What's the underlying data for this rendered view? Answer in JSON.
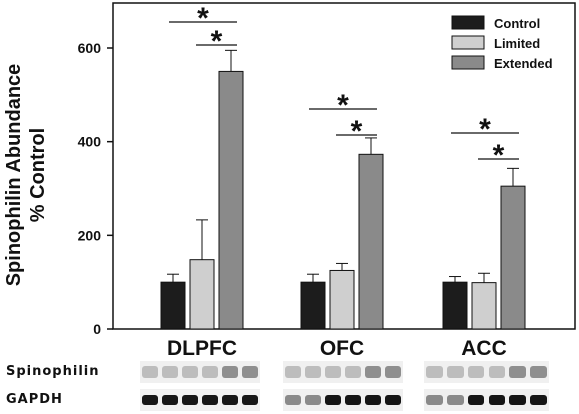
{
  "chart_data": {
    "type": "bar",
    "ylabel": [
      "Spinophilin Abundance",
      "% Control"
    ],
    "xlabel": "",
    "ylim": [
      0,
      700
    ],
    "yticks": [
      0,
      200,
      400,
      600
    ],
    "grid": false,
    "legend_placement": "top-right",
    "categories": [
      "DLPFC",
      "OFC",
      "ACC"
    ],
    "series": [
      {
        "name": "Control",
        "color": "#1c1c1c",
        "values": [
          100,
          100,
          100
        ],
        "errors": [
          17,
          17,
          12
        ]
      },
      {
        "name": "Limited",
        "color": "#cfcfcf",
        "values": [
          148,
          125,
          99
        ],
        "errors": [
          85,
          15,
          20
        ]
      },
      {
        "name": "Extended",
        "color": "#8a8a8a",
        "values": [
          550,
          373,
          305
        ],
        "errors": [
          45,
          35,
          38
        ]
      }
    ],
    "significance_marker": "*",
    "significance_brackets": [
      {
        "category": "DLPFC",
        "from_series": 0,
        "to_series": 2
      },
      {
        "category": "DLPFC",
        "from_series": 1,
        "to_series": 2
      },
      {
        "category": "OFC",
        "from_series": 0,
        "to_series": 2
      },
      {
        "category": "OFC",
        "from_series": 1,
        "to_series": 2
      },
      {
        "category": "ACC",
        "from_series": 0,
        "to_series": 2
      },
      {
        "category": "ACC",
        "from_series": 1,
        "to_series": 2
      }
    ]
  },
  "blots": {
    "rows": [
      {
        "label": "Spinophilin",
        "style": "faint"
      },
      {
        "label": "GAPDH",
        "style": "dark"
      }
    ]
  }
}
